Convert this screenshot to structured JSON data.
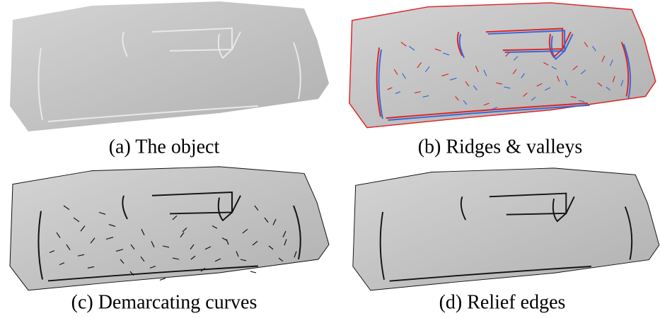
{
  "figure": {
    "captions": [
      "(a) The object",
      "(b) Ridges & valleys",
      "(c) Demarcating curves",
      "(d) Relief edges"
    ]
  }
}
